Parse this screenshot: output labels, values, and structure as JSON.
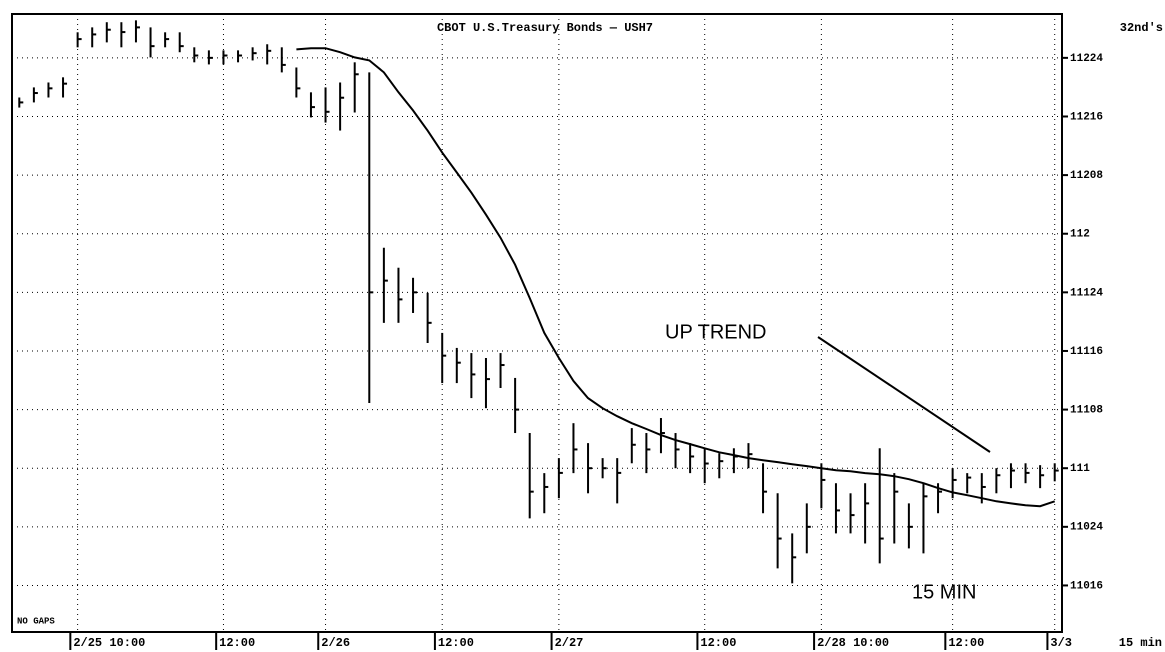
{
  "chart_data": {
    "type": "ohlc",
    "title": "CBOT U.S.Treasury Bonds — USH7",
    "y_unit_label": "32nd's",
    "x_unit_label": "15 min",
    "color": "#000000",
    "grid": true,
    "ylim": [
      110.31,
      112.92
    ],
    "yticks": [
      {
        "value": 112.75,
        "label": "11224"
      },
      {
        "value": 112.5,
        "label": "11216"
      },
      {
        "value": 112.25,
        "label": "11208"
      },
      112,
      {
        "value": 111.75,
        "label": "11124"
      },
      {
        "value": 111.5,
        "label": "11116"
      },
      {
        "value": 111.25,
        "label": "11108"
      },
      111,
      {
        "value": 110.75,
        "label": "11024"
      },
      {
        "value": 110.5,
        "label": "11016"
      }
    ],
    "categories": [
      null,
      null,
      null,
      null,
      "2/25 10:00",
      null,
      null,
      null,
      null,
      null,
      null,
      null,
      null,
      null,
      "12:00",
      null,
      null,
      null,
      null,
      null,
      null,
      "2/26",
      null,
      null,
      null,
      null,
      null,
      null,
      null,
      "12:00",
      null,
      null,
      null,
      null,
      null,
      null,
      null,
      "2/27",
      null,
      null,
      null,
      null,
      null,
      null,
      null,
      null,
      null,
      "12:00",
      null,
      null,
      null,
      null,
      null,
      null,
      null,
      "2/28 10:00",
      null,
      null,
      null,
      null,
      null,
      null,
      null,
      null,
      "12:00",
      null,
      null,
      null,
      null,
      null,
      null,
      "3/3"
    ],
    "high": [
      112.581,
      112.624,
      112.645,
      112.667,
      112.859,
      112.88,
      112.902,
      112.902,
      112.91,
      112.88,
      112.859,
      112.859,
      112.795,
      112.782,
      112.782,
      112.782,
      112.795,
      112.808,
      112.795,
      112.709,
      112.603,
      112.624,
      112.645,
      112.731,
      112.688,
      111.94,
      111.855,
      111.812,
      111.748,
      111.577,
      111.513,
      111.491,
      111.47,
      111.491,
      111.385,
      111.15,
      110.979,
      111.043,
      111.192,
      111.107,
      111.043,
      111.043,
      111.171,
      111.15,
      111.214,
      111.15,
      111.107,
      111.085,
      111.064,
      111.085,
      111.107,
      111.021,
      110.893,
      110.722,
      110.85,
      111.021,
      110.936,
      110.893,
      110.936,
      111.085,
      110.979,
      110.85,
      110.936,
      110.936,
      111.0,
      110.979,
      110.979,
      111.0,
      111.021,
      111.021,
      111.013,
      111.021
    ],
    "low": [
      112.538,
      112.56,
      112.581,
      112.581,
      112.795,
      112.795,
      112.816,
      112.795,
      112.816,
      112.752,
      112.795,
      112.774,
      112.731,
      112.722,
      112.722,
      112.731,
      112.739,
      112.722,
      112.688,
      112.581,
      112.496,
      112.474,
      112.44,
      112.517,
      111.278,
      111.62,
      111.62,
      111.662,
      111.534,
      111.363,
      111.363,
      111.299,
      111.256,
      111.342,
      111.15,
      110.786,
      110.808,
      110.872,
      110.979,
      110.893,
      110.957,
      110.85,
      111.021,
      110.979,
      111.064,
      111.0,
      110.979,
      110.936,
      110.957,
      110.979,
      111.0,
      110.808,
      110.573,
      110.509,
      110.637,
      110.829,
      110.722,
      110.722,
      110.679,
      110.594,
      110.679,
      110.658,
      110.637,
      110.808,
      110.872,
      110.893,
      110.85,
      110.893,
      110.915,
      110.936,
      110.915,
      110.944
    ],
    "close": [
      112.56,
      112.6,
      112.62,
      112.64,
      112.83,
      112.85,
      112.87,
      112.86,
      112.88,
      112.8,
      112.83,
      112.8,
      112.76,
      112.75,
      112.76,
      112.76,
      112.77,
      112.78,
      112.72,
      112.62,
      112.54,
      112.52,
      112.58,
      112.68,
      111.75,
      111.8,
      111.72,
      111.75,
      111.62,
      111.48,
      111.45,
      111.4,
      111.38,
      111.44,
      111.25,
      110.9,
      110.92,
      110.98,
      111.08,
      111.0,
      111.0,
      110.98,
      111.1,
      111.08,
      111.15,
      111.08,
      111.05,
      111.02,
      111.03,
      111.05,
      111.06,
      110.9,
      110.7,
      110.62,
      110.75,
      110.95,
      110.82,
      110.8,
      110.85,
      110.7,
      110.9,
      110.75,
      110.88,
      110.9,
      110.95,
      110.96,
      110.92,
      110.97,
      110.99,
      110.98,
      110.97,
      110.99
    ],
    "moving_average": [
      null,
      null,
      null,
      null,
      null,
      null,
      null,
      null,
      null,
      null,
      null,
      null,
      null,
      null,
      null,
      null,
      null,
      null,
      null,
      112.786,
      112.791,
      112.791,
      112.774,
      112.752,
      112.739,
      112.688,
      112.603,
      112.526,
      112.44,
      112.346,
      112.261,
      112.175,
      112.081,
      111.983,
      111.868,
      111.726,
      111.577,
      111.47,
      111.372,
      111.299,
      111.256,
      111.222,
      111.192,
      111.167,
      111.141,
      111.12,
      111.103,
      111.085,
      111.068,
      111.056,
      111.043,
      111.034,
      111.026,
      111.017,
      111.009,
      111.0,
      110.991,
      110.987,
      110.979,
      110.974,
      110.966,
      110.953,
      110.936,
      110.915,
      110.897,
      110.885,
      110.872,
      110.859,
      110.85,
      110.842,
      110.838,
      110.859
    ],
    "annotations": [
      "UP TREND",
      "15 MIN",
      "NO GAPS"
    ]
  }
}
